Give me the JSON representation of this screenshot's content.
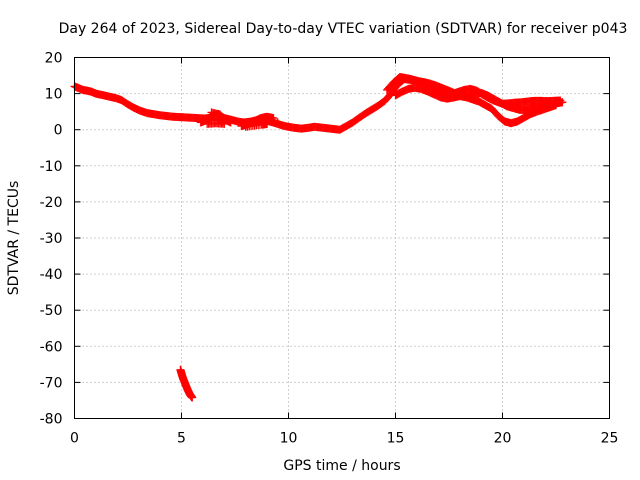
{
  "chart_data": {
    "type": "scatter",
    "title": "Day 264 of 2023, Sidereal Day-to-day VTEC variation (SDTVAR) for receiver p043",
    "xlabel": "GPS time / hours",
    "ylabel": "SDTVAR / TECUs",
    "xlim": [
      0,
      25
    ],
    "ylim": [
      -80,
      20
    ],
    "xticks": [
      0,
      5,
      10,
      15,
      20,
      25
    ],
    "xtick_labels": [
      "0",
      "5",
      "10",
      "15",
      "20",
      "25"
    ],
    "yticks": [
      20,
      10,
      0,
      -10,
      -20,
      -30,
      -40,
      -50,
      -60,
      -70,
      -80
    ],
    "ytick_labels": [
      "20",
      "10",
      "0",
      "-10",
      "-20",
      "-30",
      "-40",
      "-50",
      "-60",
      "-70",
      "-80"
    ],
    "grid": true,
    "marker": "plus",
    "color": "#ff0000",
    "series": [
      {
        "name": "main-track",
        "x": [
          0.0,
          0.2,
          0.4,
          0.6,
          0.8,
          1.0,
          1.3,
          1.6,
          1.9,
          2.2,
          2.5,
          2.8,
          3.1,
          3.4,
          3.7,
          4.0,
          4.3,
          4.6,
          4.9,
          5.2,
          5.5,
          5.8,
          6.1,
          6.4,
          6.7,
          7.0,
          7.3,
          7.6,
          7.9,
          8.2,
          8.5,
          8.8,
          9.1,
          9.4,
          9.7,
          10.0,
          10.3,
          10.6,
          10.9,
          11.2,
          11.5,
          11.8,
          12.1,
          12.4,
          12.7,
          13.0,
          13.3,
          13.6,
          13.9,
          14.2,
          14.5,
          14.8,
          15.1,
          15.4,
          15.7,
          16.0,
          16.3,
          16.6,
          16.9,
          17.2,
          17.5,
          17.8,
          18.1,
          18.4,
          18.7,
          19.0,
          19.3,
          19.6,
          19.9,
          20.2,
          20.5,
          20.8,
          21.1,
          21.4,
          21.7,
          22.0,
          22.3,
          22.6,
          22.8
        ],
        "y": [
          12.0,
          11.5,
          11.0,
          10.8,
          10.5,
          10.0,
          9.6,
          9.2,
          8.8,
          8.2,
          7.0,
          6.0,
          5.2,
          4.6,
          4.3,
          4.0,
          3.8,
          3.6,
          3.5,
          3.4,
          3.3,
          3.2,
          3.1,
          3.4,
          3.6,
          3.2,
          2.8,
          2.3,
          2.0,
          2.2,
          2.6,
          2.8,
          2.3,
          1.8,
          1.2,
          0.8,
          0.5,
          0.3,
          0.5,
          0.8,
          0.6,
          0.4,
          0.2,
          0.0,
          1.0,
          2.0,
          3.3,
          4.5,
          5.6,
          6.7,
          8.0,
          10.0,
          12.5,
          14.0,
          13.8,
          13.5,
          13.2,
          12.8,
          12.2,
          11.5,
          10.8,
          10.0,
          9.6,
          9.2,
          9.8,
          10.2,
          9.5,
          8.5,
          7.5,
          6.5,
          6.0,
          5.5,
          5.5,
          6.0,
          6.3,
          6.6,
          7.0,
          7.4,
          7.6
        ]
      },
      {
        "name": "upper-branch",
        "x": [
          14.6,
          14.9,
          15.2,
          15.5,
          15.8,
          16.1,
          16.4,
          16.7,
          17.0,
          17.3,
          17.6,
          17.9,
          18.2,
          18.5,
          18.8,
          19.1,
          19.4,
          19.7,
          20.0,
          20.3,
          20.6,
          20.9,
          21.2,
          21.5,
          21.8,
          22.1,
          22.4,
          22.7
        ],
        "y": [
          11.0,
          13.0,
          14.6,
          14.3,
          13.9,
          13.4,
          12.8,
          12.0,
          11.2,
          10.4,
          9.8,
          10.4,
          11.0,
          11.3,
          10.8,
          9.6,
          8.6,
          7.8,
          7.2,
          7.3,
          7.5,
          7.6,
          7.8,
          8.0,
          8.0,
          7.9,
          8.0,
          8.1
        ]
      },
      {
        "name": "lower-branch",
        "x": [
          15.0,
          15.3,
          15.6,
          15.9,
          16.2,
          16.5,
          16.8,
          17.1,
          17.4,
          17.7,
          18.0,
          18.3,
          18.6,
          18.9,
          19.2,
          19.5,
          19.8,
          20.1,
          20.4,
          20.7,
          21.0,
          21.3,
          21.6,
          21.9,
          22.2,
          22.5
        ],
        "y": [
          9.5,
          10.5,
          11.3,
          11.6,
          11.3,
          10.6,
          9.8,
          9.0,
          8.6,
          8.9,
          9.3,
          9.0,
          8.4,
          7.8,
          6.8,
          5.8,
          3.8,
          2.3,
          1.8,
          2.3,
          3.3,
          4.3,
          5.0,
          5.6,
          6.2,
          6.8
        ]
      },
      {
        "name": "blob-6h",
        "x": [
          5.9,
          6.1,
          6.3,
          6.5,
          6.7,
          6.9,
          7.1,
          7.3,
          6.2,
          6.6,
          7.0,
          6.4,
          6.8
        ],
        "y": [
          2.0,
          2.5,
          3.0,
          3.8,
          4.4,
          3.6,
          2.6,
          2.0,
          1.6,
          1.8,
          1.6,
          4.8,
          4.2
        ]
      },
      {
        "name": "blob-8-9h",
        "x": [
          7.8,
          8.1,
          8.4,
          8.7,
          9.0,
          9.3,
          8.0,
          8.5,
          9.0,
          8.8,
          9.5
        ],
        "y": [
          1.0,
          1.5,
          2.4,
          3.2,
          3.6,
          3.2,
          0.8,
          1.2,
          1.6,
          1.4,
          2.0
        ]
      },
      {
        "name": "outlier-drop",
        "x": [
          4.95,
          5.0,
          5.05,
          5.1,
          5.15,
          5.2,
          5.25,
          5.3,
          5.35,
          5.4,
          5.45,
          5.5
        ],
        "y": [
          -66.5,
          -67.5,
          -68.5,
          -69.3,
          -70.0,
          -70.8,
          -71.5,
          -72.2,
          -72.8,
          -73.4,
          -73.8,
          -74.2
        ]
      }
    ]
  }
}
